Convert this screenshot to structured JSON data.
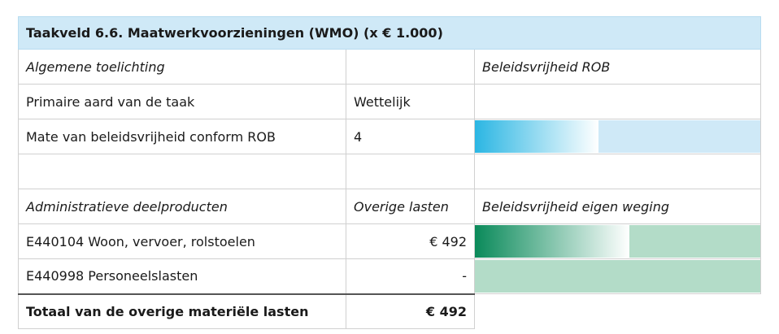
{
  "header": {
    "title": "Taakveld 6.6. Maatwerkvoorzieningen (WMO) (x € 1.000)"
  },
  "table": {
    "rows": [
      [
        "Algemene toelichting",
        "",
        "Beleidsvrijheid ROB"
      ],
      [
        "Primaire aard van de taak",
        "Wettelijk",
        ""
      ],
      [
        "Mate van beleidsvrijheid conform ROB",
        "4",
        ""
      ],
      [
        "",
        "",
        ""
      ],
      [
        "Administratieve deelproducten",
        "Overige lasten",
        "Beleidsvrijheid eigen weging"
      ],
      [
        "E440104 Woon, vervoer, rolstoelen",
        "€ 492",
        ""
      ],
      [
        "E440998 Personeelslasten",
        "-",
        ""
      ],
      [
        "Totaal van de overige materiële lasten",
        "€ 492",
        ""
      ]
    ]
  }
}
